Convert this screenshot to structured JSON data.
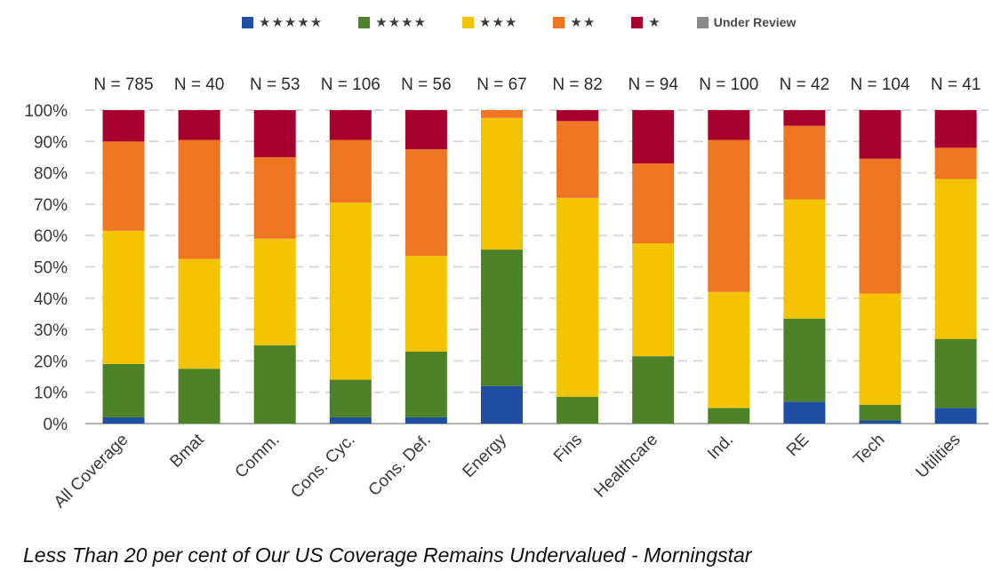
{
  "chart_data": {
    "type": "bar",
    "stacked": true,
    "categories": [
      "All Coverage",
      "Bmat",
      "Comm.",
      "Cons. Cyc.",
      "Cons. Def.",
      "Energy",
      "Fins",
      "Healthcare",
      "Ind.",
      "RE",
      "Tech",
      "Utilities"
    ],
    "n_labels": [
      "N = 785",
      "N = 40",
      "N = 53",
      "N = 106",
      "N = 56",
      "N = 67",
      "N = 82",
      "N = 94",
      "N = 100",
      "N = 42",
      "N = 104",
      "N = 41"
    ],
    "series": [
      {
        "name": "★★★★★",
        "color": "#1f4fa3",
        "values": [
          2,
          0,
          0,
          2,
          2,
          12,
          0,
          0,
          0,
          7,
          1,
          5
        ]
      },
      {
        "name": "★★★★",
        "color": "#4e8229",
        "values": [
          17,
          17.5,
          25,
          12,
          21,
          43.5,
          8.5,
          21.5,
          5,
          26.5,
          5,
          22
        ]
      },
      {
        "name": "★★★",
        "color": "#f5c400",
        "values": [
          42.5,
          35,
          34,
          56.5,
          30.5,
          42,
          63.5,
          36,
          37,
          38,
          35.5,
          51
        ]
      },
      {
        "name": "★★",
        "color": "#ee7623",
        "values": [
          28.5,
          38,
          26,
          20,
          34,
          2.5,
          24.5,
          25.5,
          48.5,
          23.5,
          43,
          10
        ]
      },
      {
        "name": "★",
        "color": "#a6002f",
        "values": [
          10,
          9.5,
          15,
          9.5,
          12.5,
          0,
          3.5,
          17,
          9.5,
          5,
          15.5,
          12
        ]
      },
      {
        "name": "Under Review",
        "color": "#8a8a8a",
        "values": [
          0,
          0,
          0,
          0,
          0,
          0,
          0,
          0,
          0,
          0,
          0,
          0
        ]
      }
    ],
    "yticks": [
      "0%",
      "10%",
      "20%",
      "30%",
      "40%",
      "50%",
      "60%",
      "70%",
      "80%",
      "90%",
      "100%"
    ],
    "ylim": [
      0,
      100
    ],
    "grid": true,
    "legend_position": "top"
  },
  "legend": {
    "item1": "★★★★★",
    "item2": "★★★★",
    "item3": "★★★",
    "item4": "★★",
    "item5": "★",
    "item6": "Under Review"
  },
  "caption": "Less Than 20 per cent of Our US Coverage Remains Undervalued - Morningstar"
}
